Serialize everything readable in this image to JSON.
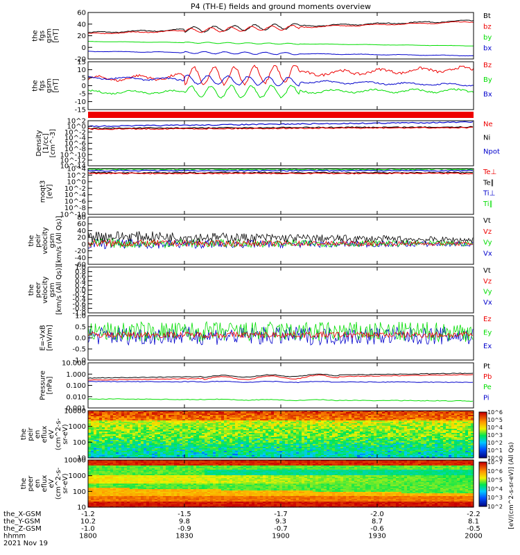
{
  "title": "P4 (TH-E) fields and ground moments overview",
  "colors": {
    "black": "#000000",
    "red": "#ee0000",
    "green": "#00dd00",
    "blue": "#0000cc"
  },
  "chart_data": [
    {
      "type": "line",
      "id": "fgs_mag",
      "ylabel": [
        "the",
        "fgs",
        "gsm",
        "[nT]"
      ],
      "ylim": [
        -20,
        65
      ],
      "y_ticks": [
        "60",
        "40",
        "20",
        "0",
        "-20"
      ],
      "series": [
        {
          "name": "Bt",
          "color": "#000000",
          "level": 28,
          "end": 50,
          "osc": 5
        },
        {
          "name": "bz",
          "color": "#ee0000",
          "level": 26,
          "end": 48,
          "osc": 4
        },
        {
          "name": "by",
          "color": "#00dd00",
          "level": 12,
          "end": 4,
          "osc": 1
        },
        {
          "name": "bx",
          "color": "#0000cc",
          "level": -6,
          "end": -14,
          "osc": 2
        }
      ]
    },
    {
      "type": "line",
      "id": "fgs_comp",
      "ylabel": [
        "the",
        "fgs",
        "gsm",
        "[nT]"
      ],
      "ylim": [
        -18,
        15
      ],
      "y_ticks": [
        "15",
        "10",
        "5",
        "0",
        "-5",
        "-10",
        "-15"
      ],
      "series": [
        {
          "name": "Bz",
          "color": "#ee0000",
          "level": 3,
          "end": 10,
          "osc": 6
        },
        {
          "name": "By",
          "color": "#00dd00",
          "level": -6,
          "end": -5,
          "osc": 4
        },
        {
          "name": "Bx",
          "color": "#0000cc",
          "level": 4,
          "end": -1,
          "osc": 3
        }
      ]
    },
    {
      "type": "line",
      "id": "density",
      "ylabel": [
        "Density",
        "[1/cc]",
        "[cm^-3]"
      ],
      "scale": "log",
      "y_ticks": [
        "10^2",
        "10^0",
        "10^-2",
        "10^-4",
        "10^-6",
        "10^-8",
        "10^-10",
        "10^-12",
        "10^-14"
      ],
      "series": [
        {
          "name": "Ne",
          "color": "#ee0000"
        },
        {
          "name": "Ni",
          "color": "#000000"
        },
        {
          "name": "Npot",
          "color": "#0000cc"
        }
      ]
    },
    {
      "type": "line",
      "id": "temperature",
      "ylabel": [
        "moqt3",
        "[eV]"
      ],
      "scale": "log",
      "y_ticks": [
        "10^4",
        "10^2",
        "10^0",
        "10^-2",
        "10^-4",
        "10^-6",
        "10^-8",
        "10^-10"
      ],
      "series": [
        {
          "name": "Te⊥",
          "color": "#ee0000"
        },
        {
          "name": "Te∥",
          "color": "#000000"
        },
        {
          "name": "Ti⊥",
          "color": "#0000cc"
        },
        {
          "name": "Ti∥",
          "color": "#00dd00"
        }
      ]
    },
    {
      "type": "line",
      "id": "peir_velocity",
      "ylabel": [
        "the",
        "peir",
        "velocity",
        "gsm",
        "[km/s (All Qs)]"
      ],
      "ylim": [
        -60,
        80
      ],
      "y_ticks": [
        "80",
        "60",
        "40",
        "20",
        "0",
        "-20",
        "-40",
        "-60"
      ],
      "series": [
        {
          "name": "Vt",
          "color": "#000000"
        },
        {
          "name": "Vz",
          "color": "#ee0000"
        },
        {
          "name": "Vy",
          "color": "#00dd00"
        },
        {
          "name": "Vx",
          "color": "#0000cc"
        }
      ]
    },
    {
      "type": "line",
      "id": "peer_velocity",
      "ylabel": [
        "the",
        "peer",
        "velocity",
        "gsm",
        "[km/s (All Qs)]"
      ],
      "ylim": [
        -1,
        1
      ],
      "y_ticks": [
        "1.0",
        "0.8",
        "0.6",
        "0.4",
        "0.2",
        "0.0",
        "-0.2",
        "-0.4",
        "-0.6",
        "-0.8",
        "-1.0"
      ],
      "series": [
        {
          "name": "Vt",
          "color": "#000000"
        },
        {
          "name": "Vz",
          "color": "#ee0000"
        },
        {
          "name": "Vy",
          "color": "#00dd00"
        },
        {
          "name": "Vx",
          "color": "#0000cc"
        }
      ]
    },
    {
      "type": "line",
      "id": "efield",
      "ylabel": [
        "E=-VxB",
        "[mV/m]"
      ],
      "ylim": [
        -1.2,
        1.0
      ],
      "y_ticks": [
        "1.0",
        "0.5",
        "0.0",
        "-0.5",
        "-1.0"
      ],
      "series": [
        {
          "name": "Ez",
          "color": "#ee0000"
        },
        {
          "name": "Ey",
          "color": "#00dd00"
        },
        {
          "name": "Ex",
          "color": "#0000cc"
        }
      ]
    },
    {
      "type": "line",
      "id": "pressure",
      "ylabel": [
        "Pressure",
        "[nPa]"
      ],
      "scale": "log",
      "y_ticks": [
        "10.000",
        "1.000",
        "0.100",
        "0.010",
        "0.001"
      ],
      "series": [
        {
          "name": "Pt",
          "color": "#000000"
        },
        {
          "name": "Pb",
          "color": "#ee0000"
        },
        {
          "name": "Pe",
          "color": "#00dd00"
        },
        {
          "name": "Pi",
          "color": "#0000cc"
        }
      ]
    },
    {
      "type": "heatmap",
      "id": "peir_spectrogram",
      "ylabel": [
        "the",
        "peir",
        "en",
        "eflux",
        "eV",
        "(cm^2-s-",
        "sr-eV)"
      ],
      "scale": "log",
      "y_ticks": [
        "10000",
        "1000",
        "100",
        "10"
      ]
    },
    {
      "type": "heatmap",
      "id": "peer_spectrogram",
      "ylabel": [
        "the",
        "peer",
        "en",
        "eflux",
        "eV",
        "(cm^2-s-",
        "sr-eV)"
      ],
      "scale": "log",
      "y_ticks": [
        "10000",
        "1000",
        "100",
        "10"
      ]
    }
  ],
  "colorbar": {
    "label": "[eV/(cm^2-s-sr-eV)] (All Qs)",
    "top_ticks": [
      "10^6",
      "10^5",
      "10^4",
      "10^3",
      "10^2",
      "10^1",
      "10^0"
    ],
    "bottom_ticks": [
      "10^7",
      "10^6",
      "10^5",
      "10^4",
      "10^3",
      "10^2"
    ]
  },
  "x_axis": {
    "rows": [
      {
        "label": "the_X-GSM",
        "values": [
          "-1.2",
          "-1.5",
          "-1.7",
          "-2.0",
          "-2.2"
        ]
      },
      {
        "label": "the_Y-GSM",
        "values": [
          "10.2",
          "9.8",
          "9.3",
          "8.7",
          "8.1"
        ]
      },
      {
        "label": "the_Z-GSM",
        "values": [
          "-1.0",
          "-0.9",
          "-0.7",
          "-0.6",
          "-0.5"
        ]
      },
      {
        "label": "hhmm",
        "values": [
          "1800",
          "1830",
          "1900",
          "1930",
          "2000"
        ]
      }
    ],
    "date": "2021 Nov 19"
  }
}
